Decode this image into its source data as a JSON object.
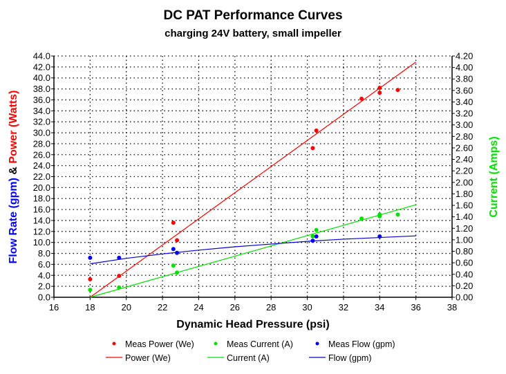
{
  "chart_data": {
    "type": "scatter",
    "title": "DC PAT Performance Curves",
    "subtitle": "charging 24V battery, small impeller",
    "xlabel": "Dynamic Head Pressure (psi)",
    "ylabel_left_parts": [
      {
        "text": "Flow Rate (gpm)",
        "color": "#0000ff"
      },
      {
        "text": " & ",
        "color": "#000000"
      },
      {
        "text": "Power (Watts)",
        "color": "#ff0000"
      }
    ],
    "ylabel_right": "Current (Amps)",
    "ylabel_right_color": "#00e000",
    "xlim": [
      16,
      38
    ],
    "xticks": [
      16,
      18,
      20,
      22,
      24,
      26,
      28,
      30,
      32,
      34,
      36,
      38
    ],
    "ylim_left": [
      0,
      44
    ],
    "yticks_left": [
      "0.0",
      "2.0",
      "4.0",
      "6.0",
      "8.0",
      "10.0",
      "12.0",
      "14.0",
      "16.0",
      "18.0",
      "20.0",
      "22.0",
      "24.0",
      "26.0",
      "28.0",
      "30.0",
      "32.0",
      "34.0",
      "36.0",
      "38.0",
      "40.0",
      "42.0",
      "44.0"
    ],
    "ylim_right": [
      0,
      4.2
    ],
    "yticks_right": [
      "0.00",
      "0.20",
      "0.40",
      "0.60",
      "0.80",
      "1.00",
      "1.20",
      "1.40",
      "1.60",
      "1.80",
      "2.00",
      "2.20",
      "2.40",
      "2.60",
      "2.80",
      "3.00",
      "3.20",
      "3.40",
      "3.60",
      "3.80",
      "4.00",
      "4.20"
    ],
    "grid": true,
    "legend_position": "bottom",
    "series": [
      {
        "name": "Meas Power (We)",
        "kind": "points",
        "axis": "left",
        "color": "#ff0000",
        "x": [
          18.0,
          19.6,
          22.6,
          22.8,
          30.3,
          30.5,
          33.0,
          34.0,
          34.0,
          35.0
        ],
        "y": [
          3.3,
          3.9,
          13.6,
          10.4,
          27.2,
          30.4,
          36.2,
          38.2,
          37.3,
          37.8
        ]
      },
      {
        "name": "Meas Current (A)",
        "kind": "points",
        "axis": "right",
        "color": "#00e000",
        "x": [
          18.0,
          19.6,
          22.6,
          22.8,
          30.3,
          30.5,
          33.0,
          34.0,
          34.0,
          35.0
        ],
        "y": [
          0.13,
          0.17,
          0.55,
          0.43,
          1.06,
          1.17,
          1.37,
          1.44,
          1.41,
          1.44
        ]
      },
      {
        "name": "Meas Flow (gpm)",
        "kind": "points",
        "axis": "left",
        "color": "#0000ff",
        "x": [
          18.0,
          19.6,
          22.6,
          22.8,
          30.3,
          30.5,
          34.0
        ],
        "y": [
          7.2,
          7.2,
          8.8,
          8.1,
          10.3,
          11.1,
          11.1
        ]
      },
      {
        "name": "Power (We)",
        "kind": "line",
        "axis": "left",
        "color": "#ff0000",
        "x": [
          18,
          36
        ],
        "y": [
          0.0,
          42.9
        ]
      },
      {
        "name": "Current (A)",
        "kind": "line",
        "axis": "right",
        "color": "#00e000",
        "x": [
          18,
          36
        ],
        "y": [
          0.0,
          1.61
        ]
      },
      {
        "name": "Flow (gpm)",
        "kind": "line",
        "axis": "left",
        "color": "#0000cc",
        "x": [
          18,
          20,
          22,
          24,
          26,
          28,
          30,
          32,
          34,
          36
        ],
        "y": [
          6.1,
          7.1,
          7.9,
          8.6,
          9.2,
          9.7,
          10.2,
          10.6,
          10.9,
          11.2
        ]
      }
    ],
    "legend": [
      {
        "label": "Meas Power (We)",
        "marker": "dot",
        "color": "#ff0000"
      },
      {
        "label": "Meas Current (A)",
        "marker": "dot",
        "color": "#00e000"
      },
      {
        "label": "Meas Flow (gpm)",
        "marker": "dot",
        "color": "#0000ff"
      },
      {
        "label": "Power (We)",
        "marker": "line",
        "color": "#ff0000"
      },
      {
        "label": "Current (A)",
        "marker": "line",
        "color": "#00e000"
      },
      {
        "label": "Flow (gpm)",
        "marker": "line",
        "color": "#0000cc"
      }
    ]
  }
}
